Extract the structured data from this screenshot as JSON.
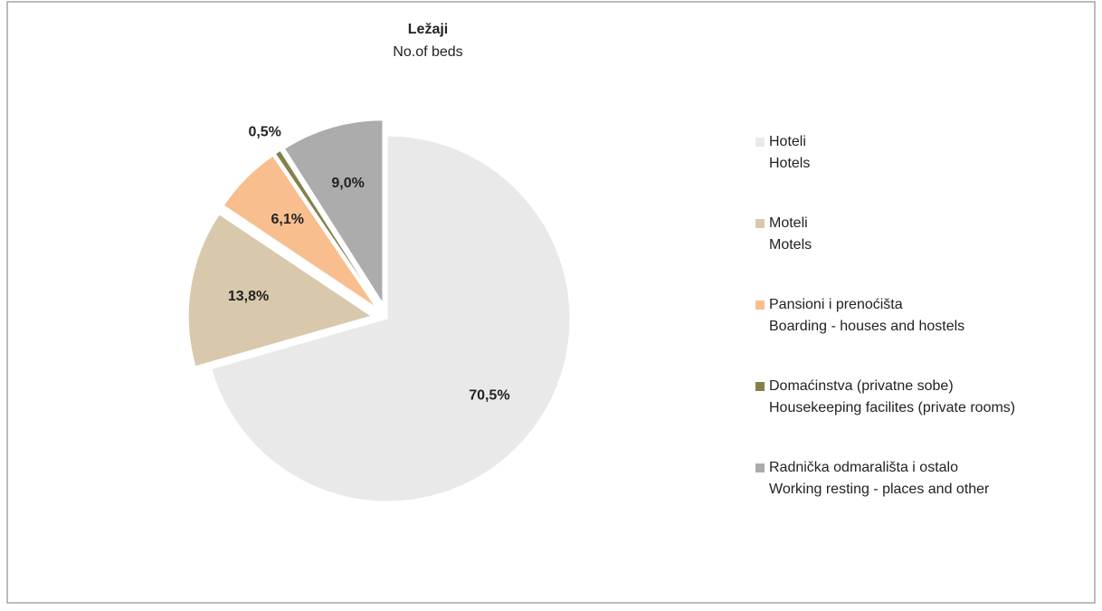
{
  "chart_data": {
    "type": "pie",
    "title": "Ležaji",
    "subtitle": "No.of beds",
    "categories": [
      [
        "Hoteli",
        "Hotels"
      ],
      [
        "Moteli",
        "Motels"
      ],
      [
        "Pansioni  i  prenoćišta",
        "Boarding - houses and hostels"
      ],
      [
        "Domaćinstva (privatne sobe)",
        "Housekeeping facilites (private rooms)"
      ],
      [
        "Radnička odmarališta i ostalo",
        "Working resting - places and other"
      ]
    ],
    "values": [
      70.5,
      13.8,
      6.1,
      0.5,
      9.0
    ],
    "value_labels": [
      "70,5%",
      "13,8%",
      "6,1%",
      "0,5%",
      "9,0%"
    ],
    "colors": [
      "#e9e9e9",
      "#d8c9ac",
      "#f9be8e",
      "#857f49",
      "#acacac"
    ],
    "legend": "right"
  }
}
